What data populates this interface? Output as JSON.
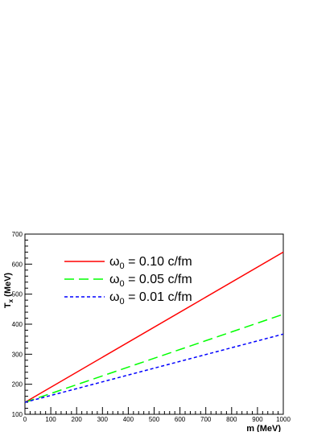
{
  "chart_data": {
    "type": "line",
    "xlabel": "m (MeV)",
    "ylabel_main": "T",
    "ylabel_sub": "x",
    "ylabel_unit": "(MeV)",
    "xlim": [
      0,
      1000
    ],
    "ylim": [
      100,
      700
    ],
    "xticks": [
      "0",
      "100",
      "200",
      "300",
      "400",
      "500",
      "600",
      "700",
      "800",
      "900",
      "1000"
    ],
    "yticks": [
      "100",
      "200",
      "300",
      "400",
      "500",
      "600",
      "700"
    ],
    "grid": false,
    "legend_position": "top-left",
    "series": [
      {
        "name_prefix": "ω",
        "name_sub": "0",
        "name_suffix": " = 0.10 c/fm",
        "style": "solid",
        "color": "#ff0000",
        "x": [
          0,
          1000
        ],
        "y": [
          140,
          640
        ]
      },
      {
        "name_prefix": "ω",
        "name_sub": "0",
        "name_suffix": " = 0.05 c/fm",
        "style": "long-dash",
        "color": "#00ff00",
        "x": [
          0,
          1000
        ],
        "y": [
          140,
          433
        ]
      },
      {
        "name_prefix": "ω",
        "name_sub": "0",
        "name_suffix": " = 0.01 c/fm",
        "style": "short-dash",
        "color": "#0000ff",
        "x": [
          0,
          1000
        ],
        "y": [
          140,
          367
        ]
      }
    ]
  }
}
